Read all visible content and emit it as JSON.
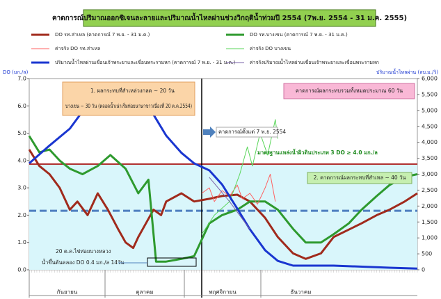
{
  "chart_data": {
    "type": "line",
    "title": "คาดการณ์ปริมาณออกซิเจนละลายและปริมาณน้ำไหลผ่านช่วงวิกฤติน้ำท่วมปี 2554 (7พ.ย. 2554 - 31 ม.ค. 2555)",
    "ylabel": "DO (มก./ล)",
    "y2label": "ปริมาณน้ำไหลผ่าน (ลบ.ม./วิ)",
    "xlim": [
      0,
      153
    ],
    "ylim": [
      0,
      7
    ],
    "yticks": [
      {
        "value": 0,
        "label": "0.0"
      },
      {
        "value": 1,
        "label": "1.0"
      },
      {
        "value": 2,
        "label": "2.0"
      },
      {
        "value": 3,
        "label": "3.0"
      },
      {
        "value": 4,
        "label": "4.0"
      },
      {
        "value": 5,
        "label": "5.0"
      },
      {
        "value": 6,
        "label": "6.0"
      },
      {
        "value": 7,
        "label": "7.0"
      }
    ],
    "y2lim": [
      0,
      6000
    ],
    "y2ticks": [
      0,
      500,
      {
        "value": 1000,
        "label": "1,000"
      },
      {
        "value": 1500,
        "label": "1,500"
      },
      {
        "value": 2000,
        "label": "2,000"
      },
      {
        "value": 2500,
        "label": "2,500"
      },
      {
        "value": 3000,
        "label": "3,000"
      },
      {
        "value": 3500,
        "label": "3,500"
      },
      {
        "value": 4000,
        "label": "4,000"
      },
      {
        "value": 4500,
        "label": "4,500"
      },
      {
        "value": 5000,
        "label": "5,000"
      },
      {
        "value": 5500,
        "label": "5,500"
      },
      {
        "value": 6000,
        "label": "6,000"
      }
    ],
    "grid": false,
    "series": [
      {
        "name": "DO รท.ส่าเหล (คาดการณ์ 7 พ.ย. - 31 ม.ค.)",
        "color": "#a02a1c",
        "width": 3,
        "x": [
          0,
          4,
          8,
          12,
          16,
          19,
          23,
          27,
          31,
          35,
          38,
          41,
          43,
          46,
          49,
          52,
          54,
          60,
          65,
          71,
          76,
          82,
          87,
          93,
          98,
          104,
          109,
          115,
          120,
          131,
          137,
          142,
          148,
          153
        ],
        "values": [
          4.4,
          3.8,
          3.5,
          3.0,
          2.2,
          2.5,
          2.0,
          2.8,
          2.2,
          1.5,
          1.0,
          0.8,
          1.2,
          1.7,
          2.2,
          2.0,
          2.5,
          2.8,
          2.5,
          2.6,
          2.7,
          2.75,
          2.5,
          1.9,
          1.2,
          0.6,
          0.4,
          0.6,
          1.2,
          1.7,
          2.0,
          2.2,
          2.5,
          2.8
        ]
      },
      {
        "name": "DO รท.บางเขน (คาดการณ์ 7 พ.ย. - 31 ม.ค.)",
        "color": "#2e9a2e",
        "width": 3,
        "x": [
          0,
          4,
          8,
          12,
          16,
          21,
          27,
          32,
          38,
          43,
          47,
          50,
          54,
          60,
          65,
          68,
          71,
          76,
          82,
          87,
          93,
          98,
          104,
          109,
          115,
          120,
          126,
          131,
          137,
          142,
          148,
          153
        ],
        "values": [
          4.9,
          4.3,
          4.4,
          4.0,
          3.7,
          3.5,
          3.8,
          4.2,
          3.7,
          2.8,
          3.3,
          0.3,
          0.3,
          0.4,
          0.5,
          1.1,
          1.7,
          2.0,
          2.2,
          2.5,
          2.5,
          2.2,
          1.5,
          1.0,
          1.0,
          1.3,
          1.7,
          2.2,
          2.7,
          3.1,
          3.4,
          3.5
        ]
      },
      {
        "name": "ค่าจริง DO รท.ส่าเหล",
        "color": "#ff6060",
        "width": 1,
        "x": [
          68,
          71,
          73,
          76,
          79,
          82,
          84,
          87,
          90,
          93,
          95,
          97
        ],
        "values": [
          2.8,
          3.0,
          2.5,
          2.9,
          2.7,
          3.1,
          2.6,
          2.8,
          2.4,
          3.0,
          3.5,
          2.5
        ]
      },
      {
        "name": "ค่าจริง DO บางเขน",
        "color": "#5ad65a",
        "width": 1,
        "x": [
          68,
          73,
          79,
          83,
          86,
          88,
          91,
          94,
          97,
          98
        ],
        "values": [
          1.3,
          2.0,
          2.5,
          3.5,
          4.5,
          3.8,
          5.0,
          4.2,
          5.5,
          4.8
        ]
      },
      {
        "name": "ปริมาณน้ำไหลผ่านเขื่อนเจ้าพระยาและเขื่อนพระรามหก (คาดการณ์ 7 พ.ย. - 31 ม.ค.)",
        "color": "#1a36d0",
        "width": 3,
        "axis": "y2",
        "x": [
          0,
          8,
          16,
          21,
          30,
          38,
          43,
          47,
          49,
          54,
          60,
          65,
          71,
          76,
          82,
          87,
          93,
          98,
          104,
          120,
          142,
          153
        ],
        "values": [
          3340,
          3900,
          4430,
          4970,
          5410,
          5520,
          5590,
          5520,
          4870,
          4210,
          3670,
          3340,
          3120,
          2680,
          1920,
          1270,
          610,
          280,
          130,
          130,
          65,
          40
        ]
      },
      {
        "name": "ค่าจริงปริมาณน้ำไหลผ่านเขื่อนเจ้าพระยาและเขื่อนพระรามหก",
        "color": "#7a62a8",
        "width": 1,
        "axis": "y2",
        "x": [
          71,
          79,
          87
        ],
        "values": [
          2900,
          2140,
          1270
        ]
      }
    ],
    "reference_lines": [
      {
        "value": 3.87,
        "color": "#b03030"
      },
      {
        "value": 2.16,
        "color": "#4f7fc0",
        "dashed": true
      }
    ],
    "forecast_start": 68,
    "annotations": [
      "1. ผลกระทบที่สำเหล่วงกลด ~ 20 วัน",
      "บางเขน ~ 30 วัน (ตลอดน้ำเน่าเริ่มท่อยนานาขาวเนื่องที่ 20 ต.ค.2554)",
      "คาดการณ์ผลกระทบรวมทั้งหมดประมาณ 60 วัน",
      "คาดการณ์ตั้งแต่ 7 พ.ย. 2554",
      "มาตรฐานแหล่งน้ำผิวดินประเภท 3 DO ≥ 4.0 มก./ล",
      "2. คาดการณ์ผลกระทบที่สำเหล ~ 40 วัน",
      "20 ต.ค.ไข่ท่อยบางหลวง",
      "น้ำขึ้นต้นคลอง DO 0.4 มก./ล 14วัน"
    ],
    "months": [
      "กันยายน",
      "ตุลาคม",
      "พฤศจิกายน",
      "ธันวาคม"
    ]
  }
}
